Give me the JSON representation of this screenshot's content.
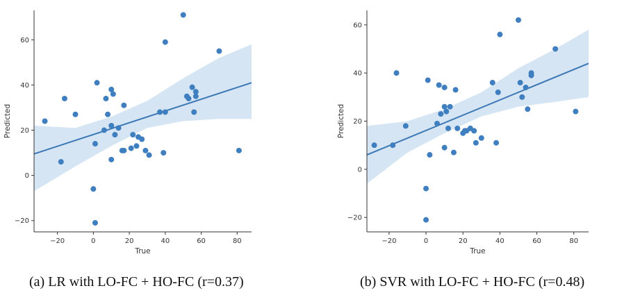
{
  "chart_data": [
    {
      "type": "scatter",
      "title": "",
      "xlabel": "True",
      "ylabel": "Predicted",
      "xlim": [
        -33,
        88
      ],
      "ylim": [
        -25,
        73
      ],
      "xticks": [
        -20,
        0,
        20,
        40,
        60,
        80
      ],
      "yticks": [
        -20,
        0,
        20,
        40,
        60
      ],
      "tick_labels_x": [
        "−20",
        "0",
        "20",
        "40",
        "60",
        "80"
      ],
      "tick_labels_y": [
        "−20",
        "0",
        "20",
        "40",
        "60"
      ],
      "fit_line": {
        "x": [
          -33,
          88
        ],
        "y": [
          9.5,
          41
        ]
      },
      "ci_band": {
        "x": [
          -33,
          -10,
          10,
          30,
          50,
          70,
          88
        ],
        "lower": [
          -7,
          4,
          13,
          21,
          24,
          25,
          25
        ],
        "upper": [
          22,
          21,
          26,
          33,
          43,
          52,
          58
        ]
      },
      "points": [
        {
          "x": -27,
          "y": 24
        },
        {
          "x": -16,
          "y": 34
        },
        {
          "x": -10,
          "y": 27
        },
        {
          "x": -18,
          "y": 6
        },
        {
          "x": 0,
          "y": -6
        },
        {
          "x": 1,
          "y": -21
        },
        {
          "x": 1,
          "y": 14
        },
        {
          "x": 2,
          "y": 41
        },
        {
          "x": 6,
          "y": 20
        },
        {
          "x": 7,
          "y": 34
        },
        {
          "x": 8,
          "y": 27
        },
        {
          "x": 10,
          "y": 38
        },
        {
          "x": 11,
          "y": 36
        },
        {
          "x": 10,
          "y": 22
        },
        {
          "x": 12,
          "y": 18
        },
        {
          "x": 14,
          "y": 21
        },
        {
          "x": 10,
          "y": 7
        },
        {
          "x": 16,
          "y": 11
        },
        {
          "x": 17,
          "y": 11
        },
        {
          "x": 17,
          "y": 31
        },
        {
          "x": 21,
          "y": 12
        },
        {
          "x": 22,
          "y": 18
        },
        {
          "x": 24,
          "y": 13
        },
        {
          "x": 25,
          "y": 17
        },
        {
          "x": 27,
          "y": 16
        },
        {
          "x": 29,
          "y": 11
        },
        {
          "x": 31,
          "y": 9
        },
        {
          "x": 37,
          "y": 28
        },
        {
          "x": 39,
          "y": 10
        },
        {
          "x": 40,
          "y": 59
        },
        {
          "x": 40,
          "y": 28
        },
        {
          "x": 50,
          "y": 71
        },
        {
          "x": 52,
          "y": 35
        },
        {
          "x": 53,
          "y": 34
        },
        {
          "x": 55,
          "y": 39
        },
        {
          "x": 56,
          "y": 28
        },
        {
          "x": 57,
          "y": 37
        },
        {
          "x": 57,
          "y": 35
        },
        {
          "x": 70,
          "y": 55
        },
        {
          "x": 81,
          "y": 11
        }
      ],
      "caption": "(a)    LR with LO-FC + HO-FC (r=0.37)"
    },
    {
      "type": "scatter",
      "title": "",
      "xlabel": "True",
      "ylabel": "Predicted",
      "xlim": [
        -32,
        88
      ],
      "ylim": [
        -26,
        66
      ],
      "xticks": [
        -20,
        0,
        20,
        40,
        60,
        80
      ],
      "yticks": [
        -20,
        0,
        20,
        40,
        60
      ],
      "tick_labels_x": [
        "−20",
        "0",
        "20",
        "40",
        "60",
        "80"
      ],
      "tick_labels_y": [
        "−20",
        "0",
        "20",
        "40",
        "60"
      ],
      "fit_line": {
        "x": [
          -32,
          88
        ],
        "y": [
          6,
          44
        ]
      },
      "ci_band": {
        "x": [
          -32,
          -10,
          10,
          30,
          50,
          70,
          88
        ],
        "lower": [
          -6,
          7,
          15,
          22,
          26,
          28,
          30
        ],
        "upper": [
          18,
          20,
          25,
          32,
          42,
          50,
          58
        ]
      },
      "points": [
        {
          "x": -28,
          "y": 10
        },
        {
          "x": -18,
          "y": 10
        },
        {
          "x": -11,
          "y": 18
        },
        {
          "x": -16,
          "y": 40
        },
        {
          "x": 0,
          "y": -8
        },
        {
          "x": 0,
          "y": -21
        },
        {
          "x": 1,
          "y": 37
        },
        {
          "x": 2,
          "y": 6
        },
        {
          "x": 6,
          "y": 19
        },
        {
          "x": 7,
          "y": 35
        },
        {
          "x": 8,
          "y": 23
        },
        {
          "x": 10,
          "y": 34
        },
        {
          "x": 10,
          "y": 26
        },
        {
          "x": 11,
          "y": 24
        },
        {
          "x": 12,
          "y": 17
        },
        {
          "x": 13,
          "y": 26
        },
        {
          "x": 10,
          "y": 9
        },
        {
          "x": 15,
          "y": 7
        },
        {
          "x": 16,
          "y": 33
        },
        {
          "x": 17,
          "y": 17
        },
        {
          "x": 20,
          "y": 15
        },
        {
          "x": 21,
          "y": 16
        },
        {
          "x": 22,
          "y": 16
        },
        {
          "x": 24,
          "y": 17
        },
        {
          "x": 26,
          "y": 16
        },
        {
          "x": 27,
          "y": 11
        },
        {
          "x": 30,
          "y": 13
        },
        {
          "x": 36,
          "y": 36
        },
        {
          "x": 38,
          "y": 11
        },
        {
          "x": 39,
          "y": 32
        },
        {
          "x": 40,
          "y": 56
        },
        {
          "x": 50,
          "y": 62
        },
        {
          "x": 51,
          "y": 36
        },
        {
          "x": 52,
          "y": 30
        },
        {
          "x": 54,
          "y": 34
        },
        {
          "x": 55,
          "y": 25
        },
        {
          "x": 57,
          "y": 39
        },
        {
          "x": 57,
          "y": 40
        },
        {
          "x": 70,
          "y": 50
        },
        {
          "x": 81,
          "y": 24
        }
      ],
      "caption": "(b) SVR with LO-FC + HO-FC (r=0.48)"
    }
  ]
}
